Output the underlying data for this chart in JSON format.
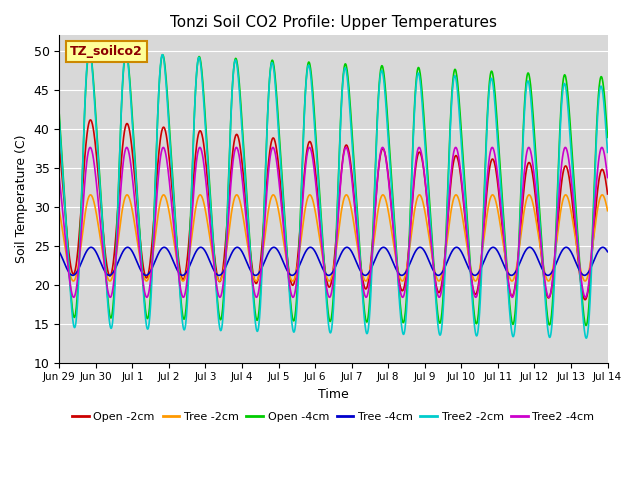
{
  "title": "Tonzi Soil CO2 Profile: Upper Temperatures",
  "xlabel": "Time",
  "ylabel": "Soil Temperature (C)",
  "ylim": [
    10,
    52
  ],
  "yticks": [
    10,
    15,
    20,
    25,
    30,
    35,
    40,
    45,
    50
  ],
  "background_color": "#d8d8d8",
  "label_box_text": "TZ_soilco2",
  "label_box_color": "#ffff99",
  "label_box_edge": "#cc8800",
  "label_text_color": "#8b0000",
  "series": [
    {
      "label": "Open -2cm",
      "color": "#cc0000",
      "lw": 1.2
    },
    {
      "label": "Tree -2cm",
      "color": "#ff9900",
      "lw": 1.2
    },
    {
      "label": "Open -4cm",
      "color": "#00cc00",
      "lw": 1.2
    },
    {
      "label": "Tree -4cm",
      "color": "#0000cc",
      "lw": 1.2
    },
    {
      "label": "Tree2 -2cm",
      "color": "#00cccc",
      "lw": 1.2
    },
    {
      "label": "Tree2 -4cm",
      "color": "#cc00cc",
      "lw": 1.2
    }
  ],
  "xtick_labels": [
    "Jun 29",
    "Jun 30",
    "Jul 1",
    "Jul 2",
    "Jul 3",
    "Jul 4",
    "Jul 5",
    "Jul 6",
    "Jul 7",
    "Jul 8",
    "Jul 9",
    "Jul 10",
    "Jul 11",
    "Jul 12",
    "Jul 13",
    "Jul 14"
  ],
  "figsize": [
    6.4,
    4.8
  ],
  "dpi": 100
}
